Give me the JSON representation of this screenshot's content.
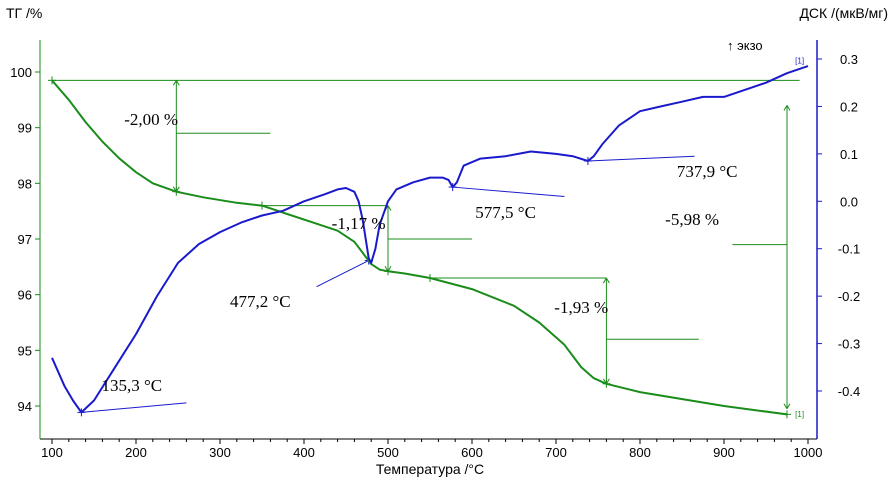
{
  "chart_data": {
    "type": "line",
    "title": "",
    "xlabel": "Температура /°C",
    "ylabel_left": "ТГ /%",
    "ylabel_right": "ДСК /(мкВ/мг)",
    "exo_label": "↑ экзо",
    "curve_marker": "[1]",
    "xlim": [
      100,
      1000
    ],
    "ylim_left": [
      93.4,
      100.6
    ],
    "ylim_right": [
      -0.475,
      0.325
    ],
    "x_ticks": [
      100,
      200,
      300,
      400,
      500,
      600,
      700,
      800,
      900,
      1000
    ],
    "y_left_ticks": [
      94,
      95,
      96,
      97,
      98,
      99,
      100
    ],
    "y_right_ticks": [
      0.3,
      0.2,
      0.1,
      0.0,
      -0.1,
      -0.2,
      -0.3,
      -0.4
    ],
    "y_right_tick_labels": [
      "0.3",
      "0.2",
      "0.1",
      "0.0",
      "-0.1",
      "-0.2",
      "-0.3",
      "-0.4"
    ],
    "colors": {
      "tg": "#1a8c1a",
      "dsc": "#1a1acc",
      "axis_left": "#1a8c1a",
      "axis_right": "#1a1acc",
      "annotation": "#1a8c1a"
    },
    "series": [
      {
        "name": "ТГ",
        "axis": "left",
        "x": [
          100,
          120,
          140,
          160,
          180,
          200,
          220,
          248,
          280,
          320,
          350,
          380,
          410,
          440,
          460,
          475,
          480,
          490,
          500,
          520,
          550,
          600,
          650,
          680,
          710,
          730,
          745,
          760,
          800,
          900,
          975
        ],
        "values": [
          99.85,
          99.5,
          99.1,
          98.75,
          98.45,
          98.2,
          98.0,
          97.85,
          97.75,
          97.65,
          97.6,
          97.45,
          97.3,
          97.15,
          96.95,
          96.65,
          96.55,
          96.45,
          96.42,
          96.38,
          96.3,
          96.1,
          95.8,
          95.5,
          95.1,
          94.7,
          94.5,
          94.4,
          94.25,
          94.0,
          93.85
        ]
      },
      {
        "name": "ДСК",
        "axis": "right",
        "x": [
          100,
          115,
          125,
          135,
          150,
          175,
          200,
          225,
          250,
          275,
          300,
          325,
          350,
          375,
          400,
          425,
          440,
          450,
          460,
          465,
          470,
          477,
          480,
          485,
          490,
          500,
          510,
          530,
          550,
          565,
          572,
          577,
          582,
          590,
          610,
          640,
          670,
          700,
          720,
          738,
          745,
          755,
          765,
          775,
          800,
          825,
          850,
          875,
          900,
          925,
          950,
          975,
          1000
        ],
        "values": [
          -0.33,
          -0.39,
          -0.42,
          -0.445,
          -0.42,
          -0.35,
          -0.28,
          -0.2,
          -0.13,
          -0.09,
          -0.065,
          -0.045,
          -0.03,
          -0.02,
          0.0,
          0.015,
          0.025,
          0.028,
          0.02,
          0.0,
          -0.04,
          -0.12,
          -0.13,
          -0.1,
          -0.05,
          0.0,
          0.025,
          0.04,
          0.05,
          0.05,
          0.045,
          0.03,
          0.04,
          0.075,
          0.09,
          0.095,
          0.105,
          0.1,
          0.095,
          0.085,
          0.095,
          0.12,
          0.14,
          0.16,
          0.19,
          0.2,
          0.21,
          0.22,
          0.22,
          0.235,
          0.25,
          0.27,
          0.285
        ]
      }
    ],
    "annotations": [
      {
        "text": "-2,00 %",
        "kind": "mass-loss"
      },
      {
        "text": "-1,17 %",
        "kind": "mass-loss"
      },
      {
        "text": "-1,93 %",
        "kind": "mass-loss"
      },
      {
        "text": "-5,98 %",
        "kind": "mass-loss"
      },
      {
        "text": "135,3 °C",
        "kind": "peak"
      },
      {
        "text": "477,2 °C",
        "kind": "peak"
      },
      {
        "text": "577,5 °C",
        "kind": "peak"
      },
      {
        "text": "737,9 °C",
        "kind": "peak"
      }
    ],
    "grid": false,
    "legend": "none"
  }
}
